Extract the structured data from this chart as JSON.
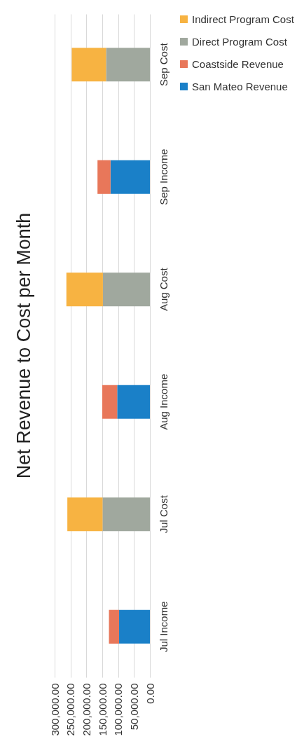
{
  "chart_data": {
    "type": "bar",
    "title": "Net Revenue to Cost per Month",
    "stacked": true,
    "orientation": "horizontal",
    "categories": [
      "Sep Cost",
      "Sep Income",
      "Aug Cost",
      "Aug Income",
      "Jul Cost",
      "Jul Income"
    ],
    "series": [
      {
        "name": "San Mateo Revenue",
        "color": "#1a80c8",
        "values": [
          null,
          124000,
          null,
          103000,
          null,
          97000
        ]
      },
      {
        "name": "Coastside Revenue",
        "color": "#e8775a",
        "values": [
          null,
          41000,
          null,
          47000,
          null,
          32000
        ]
      },
      {
        "name": "Direct Program Cost",
        "color": "#a0a89e",
        "values": [
          138000,
          null,
          148000,
          null,
          149000,
          null
        ]
      },
      {
        "name": "Indirect Program Cost",
        "color": "#f7b342",
        "values": [
          108000,
          null,
          115000,
          null,
          111000,
          null
        ]
      }
    ],
    "xlim": [
      300000,
      0
    ],
    "xticks": [
      {
        "value": 0,
        "label": "0.00"
      },
      {
        "value": 50000,
        "label": "50,000.00"
      },
      {
        "value": 100000,
        "label": "100,000.00"
      },
      {
        "value": 150000,
        "label": "150,000.00"
      },
      {
        "value": 200000,
        "label": "200,000.00"
      },
      {
        "value": 250000,
        "label": "250,000.00"
      },
      {
        "value": 300000,
        "label": "300,000.00"
      }
    ],
    "grid": "x",
    "legend": "right"
  }
}
